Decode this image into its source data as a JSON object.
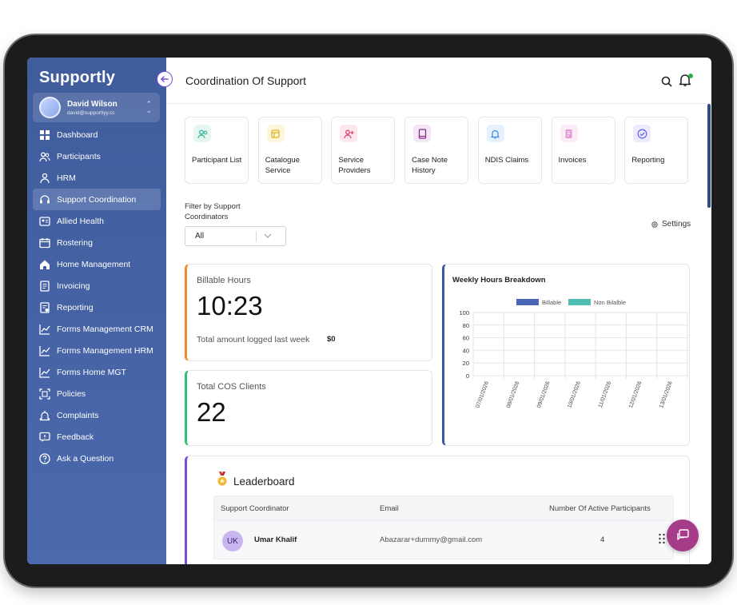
{
  "app": {
    "logo": "Supportly",
    "page_title": "Coordination Of Support"
  },
  "user": {
    "name": "David Wilson",
    "email": "david@supportlyy.cc"
  },
  "sidebar": {
    "items": [
      {
        "label": "Dashboard",
        "icon": "grid-icon",
        "active": false
      },
      {
        "label": "Participants",
        "icon": "users-icon",
        "active": false
      },
      {
        "label": "HRM",
        "icon": "hrm-icon",
        "active": false
      },
      {
        "label": "Support Coordination",
        "icon": "headset-icon",
        "active": true
      },
      {
        "label": "Allied Health",
        "icon": "id-card-icon",
        "active": false
      },
      {
        "label": "Rostering",
        "icon": "calendar-icon",
        "active": false
      },
      {
        "label": "Home Management",
        "icon": "home-icon",
        "active": false
      },
      {
        "label": "Invoicing",
        "icon": "invoice-icon",
        "active": false
      },
      {
        "label": "Reporting",
        "icon": "report-icon",
        "active": false
      },
      {
        "label": "Forms Management CRM",
        "icon": "chart-line-icon",
        "active": false
      },
      {
        "label": "Forms Management HRM",
        "icon": "chart-line-icon",
        "active": false
      },
      {
        "label": "Forms Home MGT",
        "icon": "chart-line-icon",
        "active": false
      },
      {
        "label": "Policies",
        "icon": "policy-icon",
        "active": false
      },
      {
        "label": "Complaints",
        "icon": "complaint-icon",
        "active": false
      },
      {
        "label": "Feedback",
        "icon": "feedback-icon",
        "active": false
      },
      {
        "label": "Ask a Question",
        "icon": "question-icon",
        "active": false
      }
    ]
  },
  "tiles": [
    {
      "label": "Participant List",
      "icon": "users-icon",
      "color": "#2fb79a",
      "bg": "#e6f7f2"
    },
    {
      "label": "Catalogue Service",
      "icon": "catalogue-icon",
      "color": "#e2b21d",
      "bg": "#fdf6dd"
    },
    {
      "label": "Service Providers",
      "icon": "user-plus-icon",
      "color": "#e0456d",
      "bg": "#fde7ee"
    },
    {
      "label": "Case Note History",
      "icon": "book-icon",
      "color": "#8a2d8e",
      "bg": "#f4e6f4"
    },
    {
      "label": "NDIS Claims",
      "icon": "bell-icon",
      "color": "#3c8fe0",
      "bg": "#e5f1fc"
    },
    {
      "label": "Invoices",
      "icon": "document-icon",
      "color": "#e39ad3",
      "bg": "#fbecf7"
    },
    {
      "label": "Reporting",
      "icon": "check-circle-icon",
      "color": "#6a6ae6",
      "bg": "#ecebfd"
    }
  ],
  "filter": {
    "label": "Filter by Support Coordinators",
    "value": "All",
    "settings_label": "Settings"
  },
  "billable": {
    "label": "Billable Hours",
    "value": "10:23",
    "logged_text": "Total amount logged last week",
    "logged_amount": "$0"
  },
  "clients": {
    "label": "Total COS Clients",
    "value": "22"
  },
  "chart_data": {
    "type": "bar",
    "title": "Weekly Hours Breakdown",
    "categories": [
      "07/01/2026",
      "08/01/2026",
      "09/01/2026",
      "10/01/2026",
      "11/01/2026",
      "12/01/2026",
      "13/01/2026"
    ],
    "series": [
      {
        "name": "Billable",
        "color": "#4a67b8",
        "values": [
          0,
          0,
          0,
          0,
          0,
          0,
          0
        ]
      },
      {
        "name": "Non Bilalble",
        "color": "#4fbfb3",
        "values": [
          0,
          0,
          0,
          0,
          0,
          0,
          0
        ]
      }
    ],
    "ylim": [
      0,
      100
    ],
    "yticks": [
      0,
      20,
      40,
      60,
      80,
      100
    ],
    "grid": true,
    "legend": "top-center"
  },
  "leaderboard": {
    "title": "Leaderboard",
    "columns": [
      "Support Coordinator",
      "Email",
      "Number Of Active Participants"
    ],
    "rows": [
      {
        "initials": "UK",
        "name": "Umar Khalif",
        "email": "Abazarar+dummy@gmail.com",
        "count": "4"
      }
    ]
  }
}
